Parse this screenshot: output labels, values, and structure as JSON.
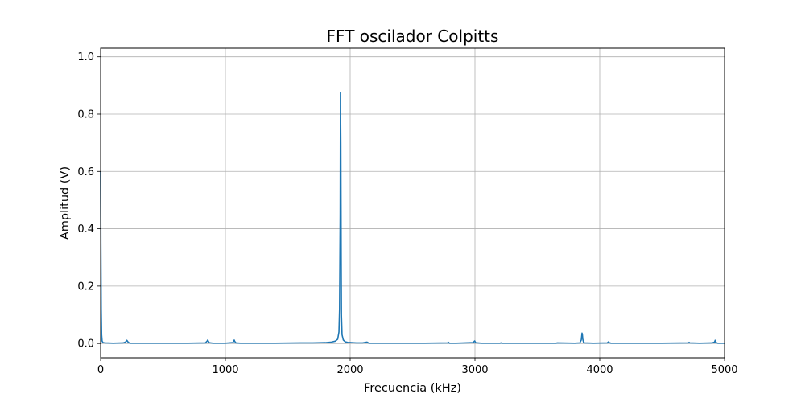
{
  "chart_data": {
    "type": "line",
    "title": "FFT oscilador Colpitts",
    "xlabel": "Frecuencia (kHz)",
    "ylabel": "Amplitud (V)",
    "xlim": [
      0,
      5000
    ],
    "ylim": [
      -0.05,
      1.03
    ],
    "xticks": [
      0,
      1000,
      2000,
      3000,
      4000,
      5000
    ],
    "xtick_labels": [
      "0",
      "1000",
      "2000",
      "3000",
      "4000",
      "5000"
    ],
    "yticks": [
      0.0,
      0.2,
      0.4,
      0.6,
      0.8,
      1.0
    ],
    "ytick_labels": [
      "0.0",
      "0.2",
      "0.4",
      "0.6",
      "0.8",
      "1.0"
    ],
    "grid": true,
    "series_color": "#1f77b4",
    "series": [
      {
        "x": [
          0,
          2,
          5,
          8,
          12,
          20,
          40,
          100,
          180,
          200,
          210,
          222,
          235,
          300,
          500,
          700,
          840,
          855,
          858,
          870,
          900,
          1000,
          1060,
          1071,
          1074,
          1085,
          1120,
          1200,
          1400,
          1600,
          1700,
          1800,
          1850,
          1880,
          1900,
          1910,
          1915,
          1920,
          1922,
          1925,
          1928,
          1930,
          1935,
          1945,
          1960,
          1980,
          2050,
          2100,
          2135,
          2143,
          2150,
          2200,
          2400,
          2600,
          2780,
          2788,
          2795,
          2850,
          2985,
          2998,
          3005,
          3050,
          3200,
          3210,
          3220,
          3400,
          3600,
          3650,
          3660,
          3800,
          3840,
          3852,
          3858,
          3861,
          3864,
          3870,
          3880,
          3950,
          4060,
          4071,
          4076,
          4090,
          4200,
          4500,
          4710,
          4716,
          4722,
          4800,
          4900,
          4920,
          4925,
          4930,
          4945,
          5000
        ],
        "y": [
          0.6,
          0.35,
          0.12,
          0.03,
          0.008,
          0.003,
          0.002,
          0.001,
          0.002,
          0.005,
          0.011,
          0.004,
          0.001,
          0.001,
          0.001,
          0.001,
          0.002,
          0.009,
          0.012,
          0.003,
          0.001,
          0.001,
          0.003,
          0.012,
          0.008,
          0.002,
          0.001,
          0.001,
          0.001,
          0.002,
          0.002,
          0.003,
          0.005,
          0.008,
          0.015,
          0.04,
          0.12,
          0.45,
          0.875,
          0.7,
          0.3,
          0.1,
          0.03,
          0.012,
          0.006,
          0.004,
          0.002,
          0.002,
          0.005,
          0.003,
          0.001,
          0.001,
          0.001,
          0.001,
          0.002,
          0.004,
          0.001,
          0.001,
          0.003,
          0.009,
          0.003,
          0.001,
          0.001,
          0.002,
          0.001,
          0.001,
          0.001,
          0.001,
          0.002,
          0.001,
          0.002,
          0.012,
          0.036,
          0.03,
          0.015,
          0.004,
          0.002,
          0.001,
          0.002,
          0.006,
          0.003,
          0.001,
          0.001,
          0.001,
          0.002,
          0.004,
          0.002,
          0.001,
          0.002,
          0.005,
          0.011,
          0.004,
          0.001,
          0.001
        ]
      }
    ]
  }
}
